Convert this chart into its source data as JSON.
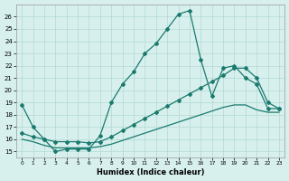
{
  "xlabel": "Humidex (Indice chaleur)",
  "background_color": "#d7f0ed",
  "grid_color": "#b2d8d2",
  "line_color": "#1a7a6e",
  "xlim": [
    -0.5,
    23.5
  ],
  "ylim": [
    14.5,
    27.0
  ],
  "xticks": [
    0,
    1,
    2,
    3,
    4,
    5,
    6,
    7,
    8,
    9,
    10,
    11,
    12,
    13,
    14,
    15,
    16,
    17,
    18,
    19,
    20,
    21,
    22,
    23
  ],
  "yticks": [
    15,
    16,
    17,
    18,
    19,
    20,
    21,
    22,
    23,
    24,
    25,
    26
  ],
  "curve1_x": [
    0,
    1,
    2,
    3,
    4,
    5,
    6,
    7,
    8,
    9,
    10,
    11,
    12,
    13,
    14,
    15,
    16,
    17,
    18,
    19,
    20,
    21,
    22,
    23
  ],
  "curve1_y": [
    18.8,
    17.0,
    16.0,
    15.0,
    15.2,
    15.2,
    15.2,
    16.3,
    19.0,
    20.5,
    21.5,
    23.0,
    23.8,
    25.0,
    26.2,
    26.5,
    22.5,
    19.5,
    21.8,
    22.0,
    21.0,
    20.5,
    18.5,
    18.5
  ],
  "curve2_x": [
    0,
    1,
    2,
    3,
    4,
    5,
    6,
    7,
    8,
    9,
    10,
    11,
    12,
    13,
    14,
    15,
    16,
    17,
    18,
    19,
    20,
    21,
    22,
    23
  ],
  "curve2_y": [
    16.5,
    16.2,
    16.0,
    15.8,
    15.8,
    15.8,
    15.7,
    15.8,
    16.2,
    16.7,
    17.2,
    17.7,
    18.2,
    18.7,
    19.2,
    19.7,
    20.2,
    20.7,
    21.2,
    21.8,
    21.8,
    21.0,
    19.0,
    18.5
  ],
  "curve3_x": [
    0,
    1,
    2,
    3,
    4,
    5,
    6,
    7,
    8,
    9,
    10,
    11,
    12,
    13,
    14,
    15,
    16,
    17,
    18,
    19,
    20,
    21,
    22,
    23
  ],
  "curve3_y": [
    16.0,
    15.8,
    15.5,
    15.3,
    15.3,
    15.3,
    15.3,
    15.4,
    15.6,
    15.9,
    16.2,
    16.5,
    16.8,
    17.1,
    17.4,
    17.7,
    18.0,
    18.3,
    18.6,
    18.8,
    18.8,
    18.4,
    18.2,
    18.2
  ]
}
